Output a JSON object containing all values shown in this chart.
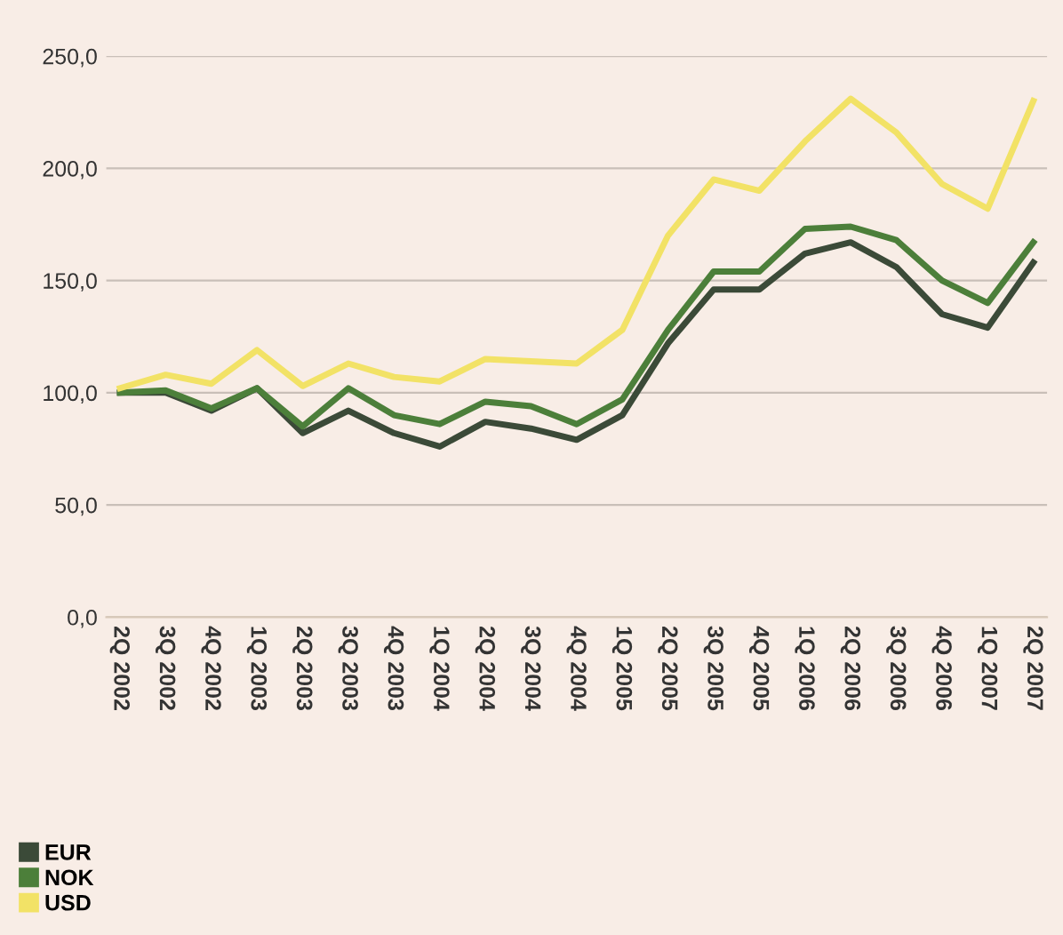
{
  "chart_data": {
    "type": "line",
    "categories": [
      "2Q 2002",
      "3Q 2002",
      "4Q 2002",
      "1Q 2003",
      "2Q 2003",
      "3Q 2003",
      "4Q 2003",
      "1Q 2004",
      "2Q 2004",
      "3Q 2004",
      "4Q 2004",
      "1Q 2005",
      "2Q 2005",
      "3Q 2005",
      "4Q 2005",
      "1Q 2006",
      "2Q 2006",
      "3Q 2006",
      "4Q 2006",
      "1Q 2007",
      "2Q 2007"
    ],
    "series": [
      {
        "name": "EUR",
        "color": "#3b4a38",
        "values": [
          100,
          100,
          92,
          102,
          82,
          92,
          82,
          76,
          87,
          84,
          79,
          90,
          122,
          146,
          146,
          162,
          167,
          156,
          135,
          129,
          158
        ]
      },
      {
        "name": "NOK",
        "color": "#4c7f3a",
        "values": [
          100,
          101,
          93,
          102,
          85,
          102,
          90,
          86,
          96,
          94,
          86,
          97,
          128,
          154,
          154,
          173,
          174,
          168,
          150,
          140,
          167
        ]
      },
      {
        "name": "USD",
        "color": "#f2e266",
        "values": [
          102,
          108,
          104,
          119,
          103,
          113,
          107,
          105,
          115,
          114,
          113,
          128,
          170,
          195,
          190,
          212,
          231,
          216,
          193,
          182,
          230
        ]
      }
    ],
    "ylim": [
      0,
      250
    ],
    "yticks": [
      {
        "value": 0,
        "label": "0,0"
      },
      {
        "value": 50,
        "label": "50,0"
      },
      {
        "value": 100,
        "label": "100,0"
      },
      {
        "value": 150,
        "label": "150,0"
      },
      {
        "value": 200,
        "label": "200,0"
      },
      {
        "value": 250,
        "label": "250,0"
      }
    ],
    "grid": "y",
    "legend": "bottom left"
  }
}
